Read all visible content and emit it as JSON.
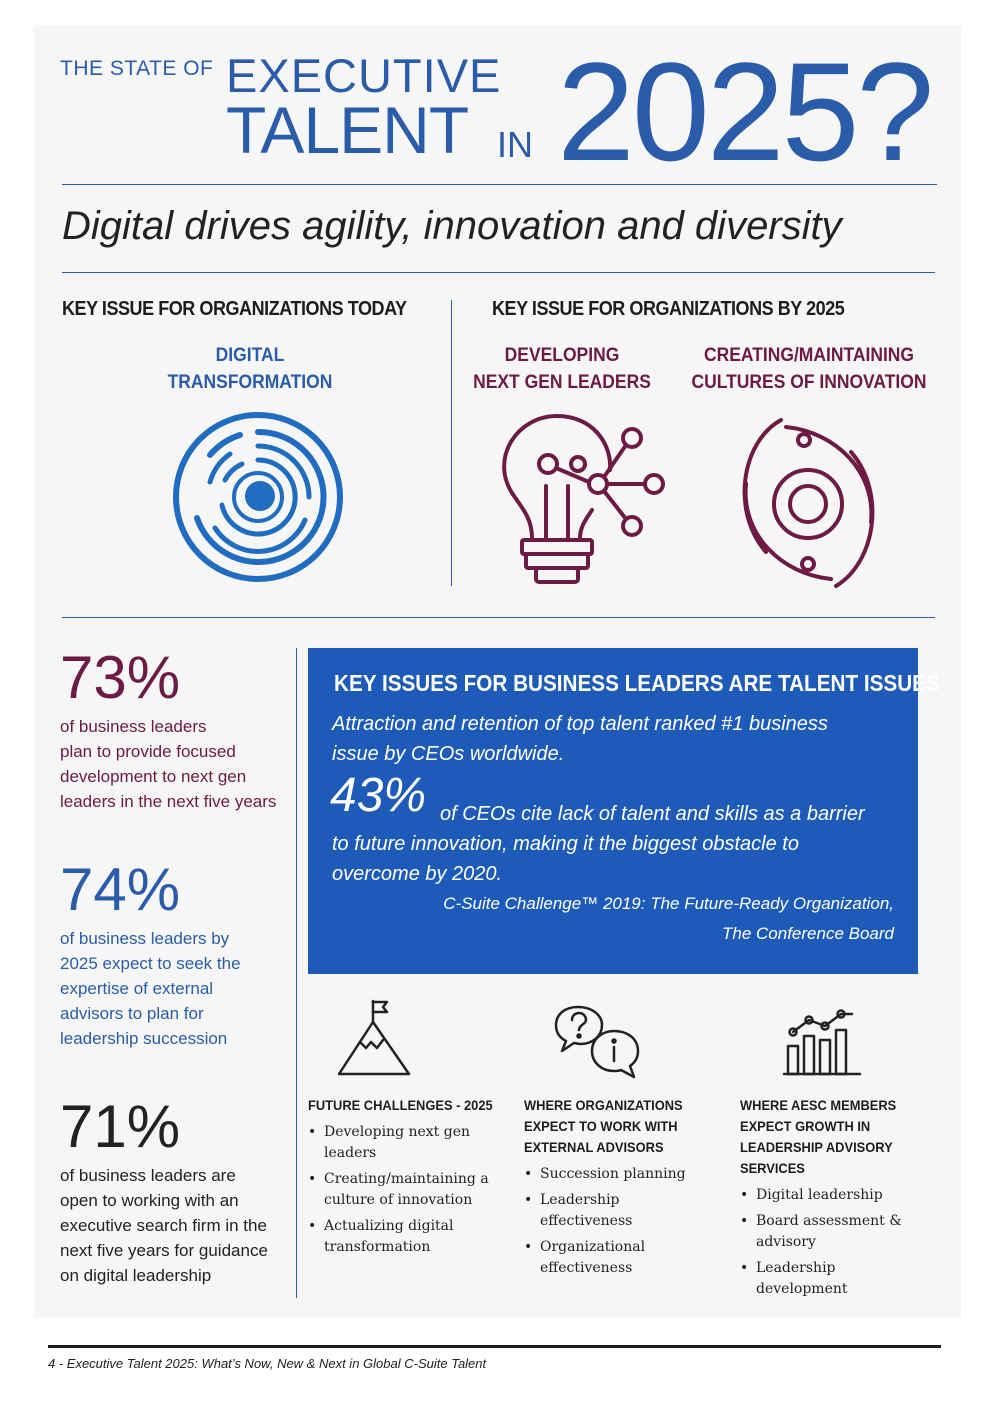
{
  "header": {
    "line1_small": "THE STATE OF",
    "line1_big": "EXECUTIVE",
    "line2": "TALENT",
    "in": "IN",
    "year": "2025?"
  },
  "subtitle": "Digital drives agility, innovation and diversity",
  "today": {
    "heading": "KEY ISSUE FOR ORGANIZATIONS TODAY",
    "issue_line1": "DIGITAL",
    "issue_line2": "TRANSFORMATION",
    "icon": "digital-target-icon"
  },
  "future": {
    "heading": "KEY ISSUE FOR ORGANIZATIONS BY 2025",
    "issue1_line1": "DEVELOPING",
    "issue1_line2": "NEXT GEN LEADERS",
    "issue1_icon": "lightbulb-network-icon",
    "issue2_line1": "CREATING/MAINTAINING",
    "issue2_line2": "CULTURES OF INNOVATION",
    "issue2_icon": "orbit-eye-icon"
  },
  "stats": [
    {
      "value": "73%",
      "text": [
        "of business leaders",
        "plan to provide focused",
        "development to next gen",
        "leaders in the next five years"
      ]
    },
    {
      "value": "74%",
      "text": [
        "of business leaders by",
        "2025 expect to seek the",
        "expertise of external",
        "advisors to plan for",
        "leadership succession"
      ]
    },
    {
      "value": "71%",
      "text": [
        "of business leaders are",
        "open to working with an",
        "executive search firm in the",
        "next five years for guidance",
        "on digital leadership"
      ]
    }
  ],
  "bluebox": {
    "heading": "KEY ISSUES FOR BUSINESS LEADERS ARE TALENT ISSUES",
    "line1": "Attraction and retention of top talent ranked #1 business",
    "line2": "issue by CEOs worldwide.",
    "big_pct": "43%",
    "line3": "of CEOs cite lack of talent and skills as a barrier",
    "line4": "to future innovation, making it the biggest obstacle to",
    "line5": "overcome by 2020.",
    "source1": "C-Suite Challenge™ 2019: The Future-Ready Organization,",
    "source2": "The Conference Board"
  },
  "columns": [
    {
      "icon": "mountain-flag-icon",
      "heading": [
        "FUTURE CHALLENGES - 2025"
      ],
      "items": [
        [
          "Developing next gen",
          "leaders"
        ],
        [
          "Creating/maintaining a",
          "culture of innovation"
        ],
        [
          "Actualizing digital",
          "transformation"
        ]
      ]
    },
    {
      "icon": "question-info-bubbles-icon",
      "heading": [
        "WHERE ORGANIZATIONS",
        "EXPECT TO WORK WITH",
        "EXTERNAL ADVISORS"
      ],
      "items": [
        [
          "Succession planning"
        ],
        [
          "Leadership",
          "effectiveness"
        ],
        [
          "Organizational",
          "effectiveness"
        ]
      ]
    },
    {
      "icon": "bar-line-chart-icon",
      "heading": [
        "WHERE AESC MEMBERS",
        "EXPECT GROWTH IN",
        "LEADERSHIP ADVISORY",
        "SERVICES"
      ],
      "items": [
        [
          "Digital leadership"
        ],
        [
          "Board assessment &",
          "advisory"
        ],
        [
          "Leadership",
          "development"
        ]
      ]
    }
  ],
  "footer": "4  -  Executive Talent 2025: What’s Now, New & Next in Global C-Suite Talent",
  "colors": {
    "blue": "#2a5caa",
    "box_blue": "#1e5bb8",
    "plum": "#6d1a44"
  }
}
